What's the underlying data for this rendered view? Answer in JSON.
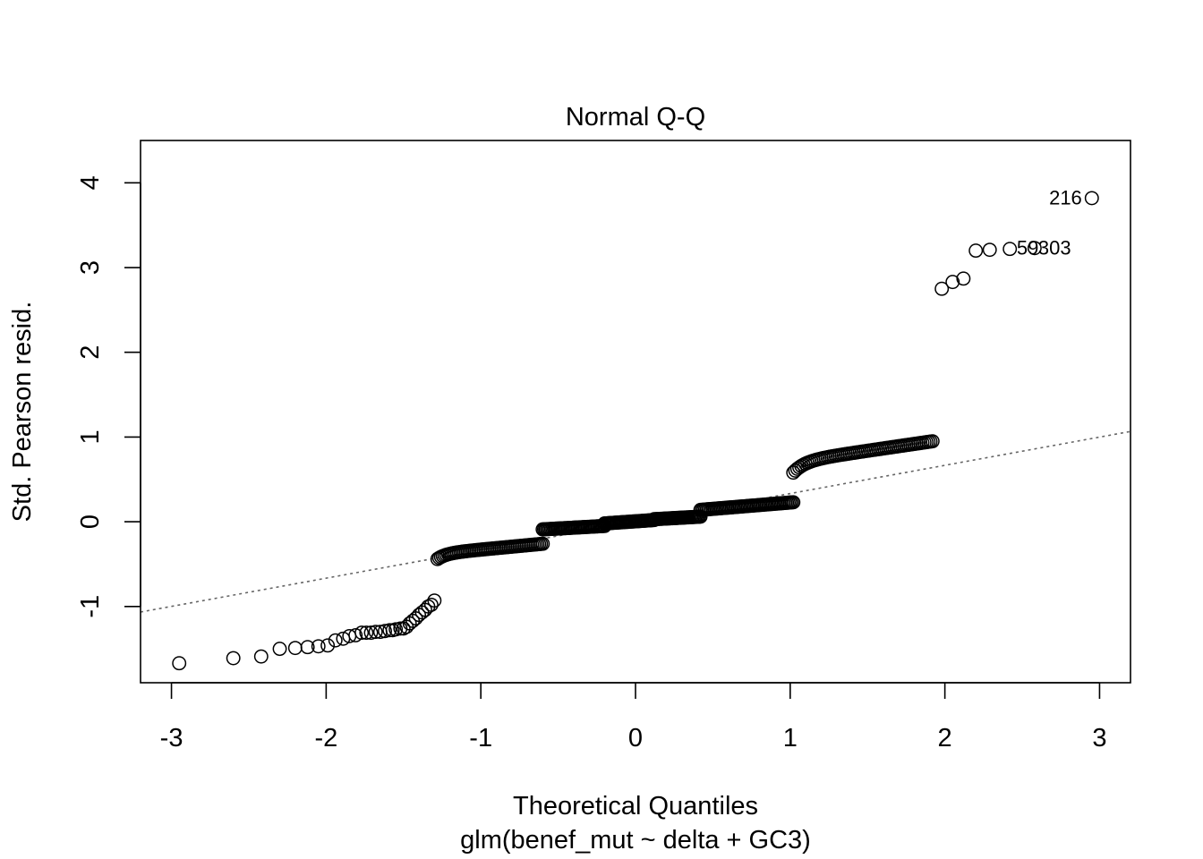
{
  "chart_data": {
    "type": "scatter",
    "title": "Normal Q-Q",
    "xlabel": "Theoretical Quantiles",
    "subtitle": "glm(benef_mut ~ delta + GC3)",
    "ylabel": "Std. Pearson resid.",
    "xlim": [
      -3.2,
      3.2
    ],
    "ylim": [
      -1.9,
      4.5
    ],
    "x_ticks": [
      -3,
      -2,
      -1,
      0,
      1,
      2,
      3
    ],
    "x_tick_labels": [
      "-3",
      "-2",
      "-1",
      "0",
      "1",
      "2",
      "3"
    ],
    "y_ticks": [
      -1,
      0,
      1,
      2,
      3,
      4
    ],
    "y_tick_labels": [
      "-1",
      "0",
      "1",
      "2",
      "3",
      "4"
    ],
    "reference_line": {
      "style": "dotted",
      "color": "#666666",
      "intercept": 0.0,
      "slope": 0.333
    },
    "segments": [
      {
        "name": "low-tail",
        "xs": [
          -2.95,
          -2.6,
          -2.42,
          -2.3,
          -2.2,
          -2.12,
          -2.05,
          -1.99,
          -1.94,
          -1.89,
          -1.85,
          -1.81,
          -1.77,
          -1.74,
          -1.71,
          -1.68,
          -1.65,
          -1.62,
          -1.59,
          -1.57,
          -1.55,
          -1.52,
          -1.5,
          -1.48,
          -1.46,
          -1.44,
          -1.42,
          -1.4,
          -1.38,
          -1.36,
          -1.34,
          -1.32,
          -1.3
        ],
        "ys": [
          -1.67,
          -1.61,
          -1.59,
          -1.5,
          -1.49,
          -1.48,
          -1.47,
          -1.46,
          -1.4,
          -1.38,
          -1.35,
          -1.34,
          -1.31,
          -1.31,
          -1.31,
          -1.3,
          -1.3,
          -1.29,
          -1.28,
          -1.28,
          -1.27,
          -1.26,
          -1.26,
          -1.24,
          -1.2,
          -1.17,
          -1.14,
          -1.1,
          -1.07,
          -1.04,
          -1.0,
          -0.98,
          -0.93
        ]
      },
      {
        "name": "cluster-a",
        "x0": -1.28,
        "x1": -0.6,
        "y0": -0.44,
        "y1": -0.26,
        "n": 60,
        "curve": "step-up"
      },
      {
        "name": "cluster-b",
        "x0": -0.6,
        "x1": -0.2,
        "y0": -0.09,
        "y1": -0.05,
        "n": 45,
        "curve": "linear"
      },
      {
        "name": "cluster-c",
        "x0": -0.2,
        "x1": 0.12,
        "y0": -0.02,
        "y1": 0.02,
        "n": 40,
        "curve": "linear"
      },
      {
        "name": "cluster-d",
        "x0": 0.12,
        "x1": 0.42,
        "y0": 0.03,
        "y1": 0.06,
        "n": 36,
        "curve": "linear"
      },
      {
        "name": "cluster-e",
        "x0": 0.42,
        "x1": 1.02,
        "y0": 0.14,
        "y1": 0.23,
        "n": 60,
        "curve": "linear"
      },
      {
        "name": "cluster-f",
        "x0": 1.02,
        "x1": 1.92,
        "y0": 0.58,
        "y1": 0.95,
        "n": 70,
        "curve": "step-up"
      },
      {
        "name": "high-tail",
        "xs": [
          1.98,
          2.05,
          2.12,
          2.2,
          2.29,
          2.42,
          2.58,
          2.95
        ],
        "ys": [
          2.75,
          2.83,
          2.87,
          3.2,
          3.21,
          3.22,
          3.23,
          3.82
        ]
      }
    ],
    "point_labels": [
      {
        "text": "216",
        "x": 2.95,
        "y": 3.82
      },
      {
        "text": "59",
        "x": 2.58,
        "y": 3.23
      },
      {
        "text": "303",
        "x": 2.58,
        "y": 3.23
      }
    ]
  }
}
